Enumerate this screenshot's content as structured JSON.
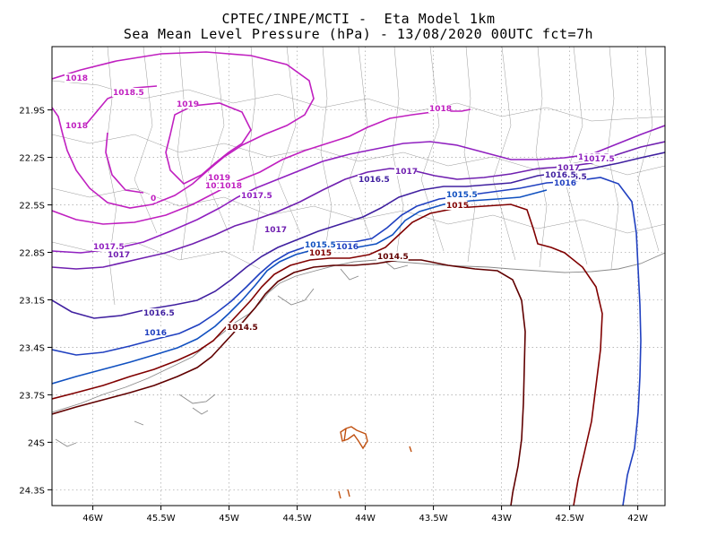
{
  "title_line1": "CPTEC/INPE/MCTI -  Eta Model 1km",
  "title_line2": "Sea Mean Level Pressure (hPa) - 13/08/2020 00UTC fct=7h",
  "map": {
    "lon_range": [
      -46.3,
      -41.8
    ],
    "lat_range": [
      -24.4,
      -21.5
    ],
    "grid": "dotted",
    "lon_ticks": [
      {
        "value": -46.0,
        "label": "46W"
      },
      {
        "value": -45.5,
        "label": "45.5W"
      },
      {
        "value": -45.0,
        "label": "45W"
      },
      {
        "value": -44.5,
        "label": "44.5W"
      },
      {
        "value": -44.0,
        "label": "44W"
      },
      {
        "value": -43.5,
        "label": "43.5W"
      },
      {
        "value": -43.0,
        "label": "43W"
      },
      {
        "value": -42.5,
        "label": "42.5W"
      },
      {
        "value": -42.0,
        "label": "42W"
      }
    ],
    "lat_ticks": [
      {
        "value": -21.9,
        "label": "21.9S"
      },
      {
        "value": -22.2,
        "label": "22.2S"
      },
      {
        "value": -22.5,
        "label": "22.5S"
      },
      {
        "value": -22.8,
        "label": "22.8S"
      },
      {
        "value": -23.1,
        "label": "23.1S"
      },
      {
        "value": -23.4,
        "label": "23.4S"
      },
      {
        "value": -23.7,
        "label": "23.7S"
      },
      {
        "value": -24.0,
        "label": "24S"
      },
      {
        "value": -24.3,
        "label": "24.3S"
      }
    ]
  },
  "contour_labels": [
    {
      "text": "1018",
      "color": "#c020c0"
    },
    {
      "text": "1018.5",
      "color": "#c020c0"
    },
    {
      "text": "1019",
      "color": "#c020c0"
    },
    {
      "text": "1018",
      "color": "#c020c0"
    },
    {
      "text": "1018",
      "color": "#c020c0"
    },
    {
      "text": "1019",
      "color": "#c020c0"
    },
    {
      "text": "1018.5",
      "color": "#c020c0"
    },
    {
      "text": "1018",
      "color": "#c020c0"
    },
    {
      "text": "1017.5",
      "color": "#9020c0"
    },
    {
      "text": "0",
      "color": "#c020c0"
    },
    {
      "text": "1017.5",
      "color": "#9020c0"
    },
    {
      "text": "1017",
      "color": "#7020b0"
    },
    {
      "text": "1017",
      "color": "#7020b0"
    },
    {
      "text": "1017.5",
      "color": "#9020c0"
    },
    {
      "text": "1016.5",
      "color": "#4020a0"
    },
    {
      "text": "1017",
      "color": "#7020b0"
    },
    {
      "text": "1016.5",
      "color": "#4020a0"
    },
    {
      "text": "1017",
      "color": "#7020b0"
    },
    {
      "text": "1017.5",
      "color": "#9020c0"
    },
    {
      "text": "1017",
      "color": "#7020b0"
    },
    {
      "text": "1016.5",
      "color": "#4020a0"
    },
    {
      "text": "1016",
      "color": "#2040c0"
    },
    {
      "text": "1015.5",
      "color": "#1050c0"
    },
    {
      "text": "1015",
      "color": "#800000"
    },
    {
      "text": "1015.5",
      "color": "#1050c0"
    },
    {
      "text": "1016",
      "color": "#2040c0"
    },
    {
      "text": "1015",
      "color": "#800000"
    },
    {
      "text": "1014.5",
      "color": "#600000"
    },
    {
      "text": "1016.5",
      "color": "#4020a0"
    },
    {
      "text": "1016",
      "color": "#2040c0"
    },
    {
      "text": "1014.5",
      "color": "#600000"
    }
  ]
}
